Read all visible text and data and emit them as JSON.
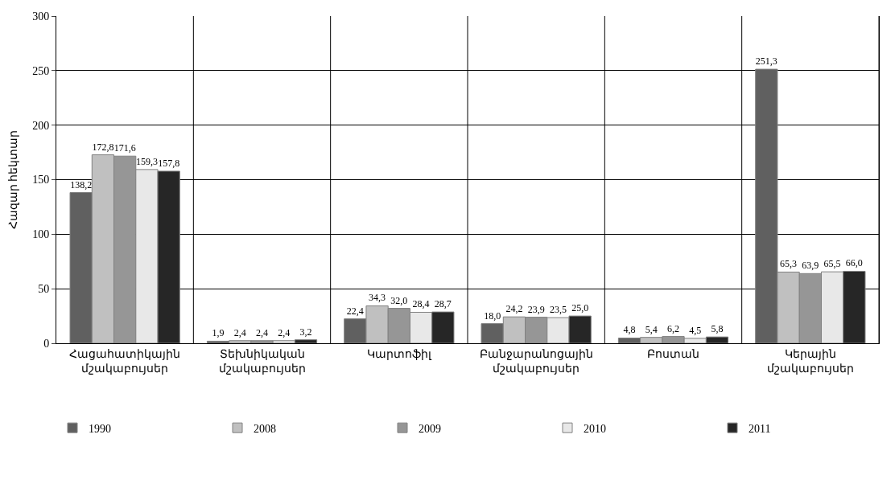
{
  "chart_data": {
    "type": "bar",
    "ylabel": "Հազար հեկտար",
    "categories": [
      "Հացահատիկային մշակաբույսեր",
      "Տեխնիկական մշակաբույսեր",
      "Կարտոֆիլ",
      "Բանջարանոցային մշակաբույսեր",
      "Բոստան",
      "Կերային մշակաբույսեր"
    ],
    "series": [
      {
        "name": "1990",
        "color": "#606060",
        "values": [
          138.2,
          1.9,
          22.4,
          18.0,
          4.8,
          251.3
        ],
        "value_labels": [
          "138,2",
          "1,9",
          "22,4",
          "18,0",
          "4,8",
          "251,3"
        ]
      },
      {
        "name": "2008",
        "color": "#c0c0c0",
        "values": [
          172.8,
          2.4,
          34.3,
          24.2,
          5.4,
          65.3
        ],
        "value_labels": [
          "172,8",
          "2,4",
          "34,3",
          "24,2",
          "5,4",
          "65,3"
        ]
      },
      {
        "name": "2009",
        "color": "#969696",
        "values": [
          171.6,
          2.4,
          32.0,
          23.9,
          6.2,
          63.9
        ],
        "value_labels": [
          "171,6",
          "2,4",
          "32,0",
          "23,9",
          "6,2",
          "63,9"
        ]
      },
      {
        "name": "2010",
        "color": "#e8e8e8",
        "values": [
          159.3,
          2.4,
          28.4,
          23.5,
          4.5,
          65.5
        ],
        "value_labels": [
          "159,3",
          "2,4",
          "28,4",
          "23,5",
          "4,5",
          "65,5"
        ]
      },
      {
        "name": "2011",
        "color": "#262626",
        "values": [
          157.8,
          3.2,
          28.7,
          25.0,
          5.8,
          66.0
        ],
        "value_labels": [
          "157,8",
          "3,2",
          "28,7",
          "25,0",
          "5,8",
          "66,0"
        ]
      }
    ],
    "ylim": [
      0,
      300
    ],
    "yticks": [
      0,
      50,
      100,
      150,
      200,
      250,
      300
    ],
    "grid": true,
    "legend": "bottom left"
  }
}
